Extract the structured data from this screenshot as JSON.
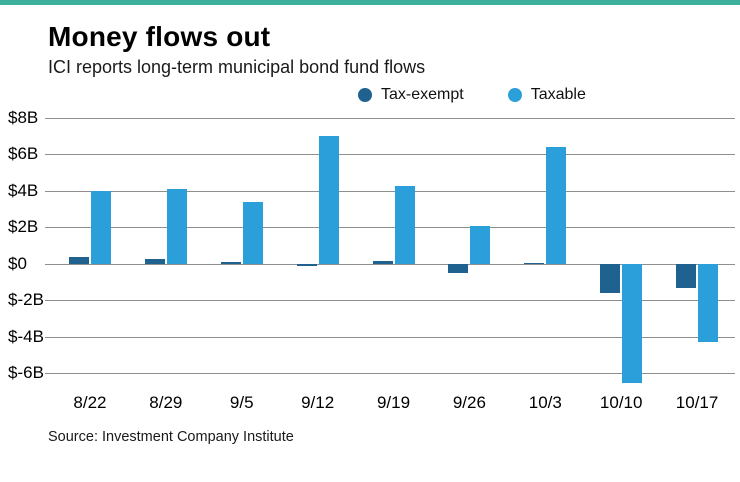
{
  "chart_data": {
    "type": "bar",
    "title": "Money flows out",
    "subtitle": "ICI reports long-term municipal bond fund flows",
    "source": "Source: Investment Company Institute",
    "categories": [
      "8/22",
      "8/29",
      "9/5",
      "9/12",
      "9/19",
      "9/26",
      "10/3",
      "10/10",
      "10/17"
    ],
    "series": [
      {
        "name": "Tax-exempt",
        "color": "#1f618f",
        "values": [
          0.4,
          0.25,
          0.1,
          -0.1,
          0.15,
          -0.5,
          0.05,
          -1.6,
          -1.3
        ]
      },
      {
        "name": "Taxable",
        "color": "#2b9fd9",
        "values": [
          4.0,
          4.1,
          3.4,
          7.0,
          4.25,
          2.1,
          6.4,
          -6.55,
          -4.3
        ]
      }
    ],
    "yticks": [
      {
        "value": 8,
        "label": "$8B"
      },
      {
        "value": 6,
        "label": "$6B"
      },
      {
        "value": 4,
        "label": "$4B"
      },
      {
        "value": 2,
        "label": "$2B"
      },
      {
        "value": 0,
        "label": "$0"
      },
      {
        "value": -2,
        "label": "$-2B"
      },
      {
        "value": -4,
        "label": "$-4B"
      },
      {
        "value": -6,
        "label": "$-6B"
      }
    ],
    "ylim": [
      -6.7,
      8
    ],
    "grid": true,
    "legend_position": "top",
    "accent_color": "#3cb09b",
    "gridline_color": "#8f8f8f"
  }
}
